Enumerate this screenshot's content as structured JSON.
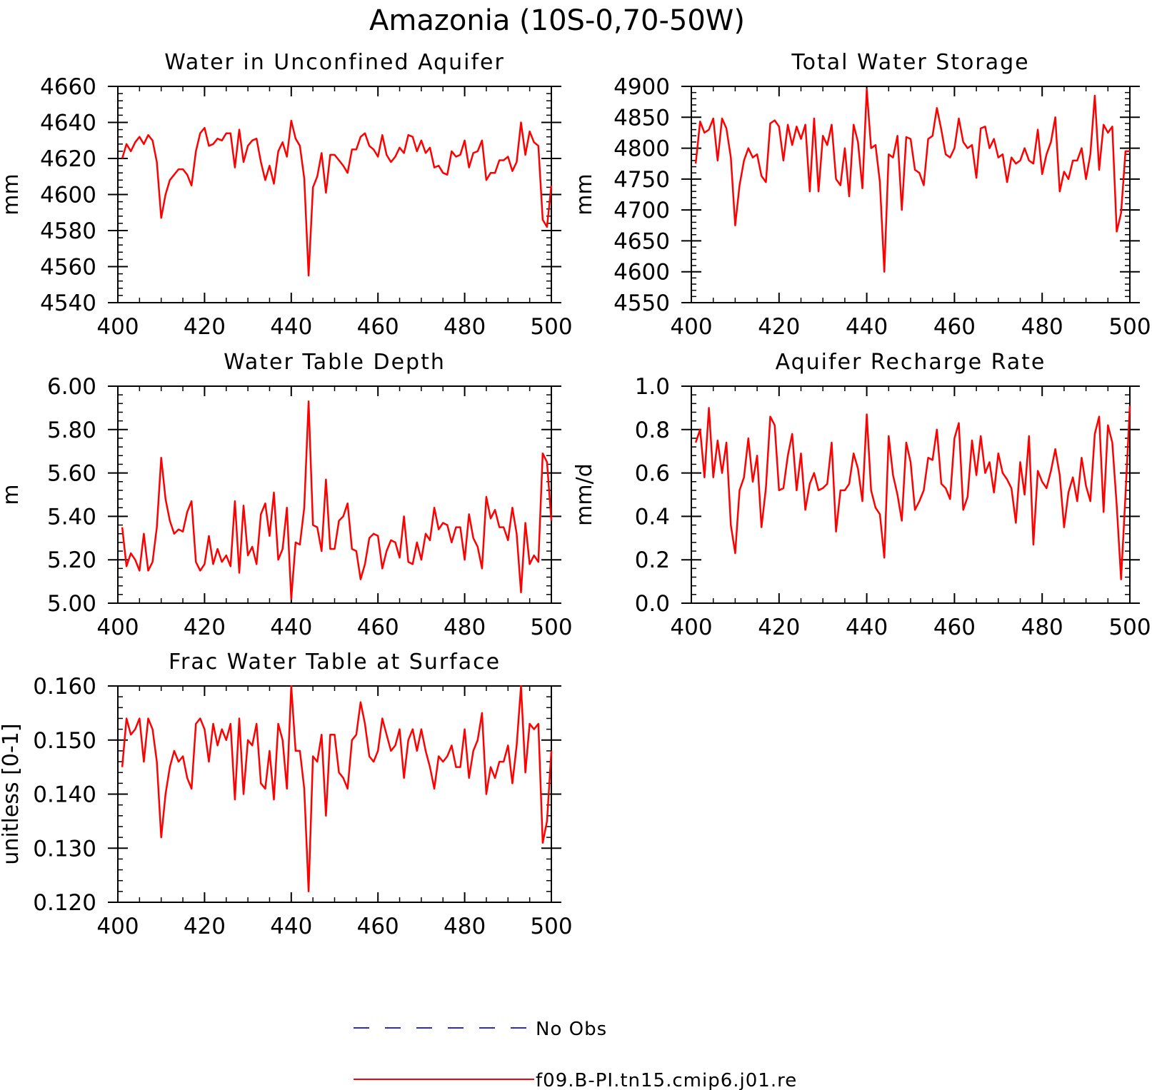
{
  "figure": {
    "title": "Amazonia (10S-0,70-50W)"
  },
  "legend": [
    {
      "label": "No Obs",
      "color": "#2a2ad0",
      "style": "dashed"
    },
    {
      "label": "f09.B-PI.tn15.cmip6.j01.re",
      "color": "#ff0000",
      "style": "solid"
    }
  ],
  "chart_data": [
    {
      "type": "line",
      "title": "Water in Unconfined Aquifer",
      "ylabel": "mm",
      "xlim": [
        400,
        500
      ],
      "ylim": [
        4540,
        4660
      ],
      "xticks": [
        400,
        420,
        440,
        460,
        480,
        500
      ],
      "xtick_labels": [
        "400",
        "420",
        "440",
        "460",
        "480",
        "500"
      ],
      "yticks": [
        4540,
        4560,
        4580,
        4600,
        4620,
        4640,
        4660
      ],
      "ytick_labels": [
        "4540",
        "4560",
        "4580",
        "4600",
        "4620",
        "4640",
        "4660"
      ],
      "series": [
        {
          "color": "#ff0000",
          "x_start": 401,
          "x_step": 1,
          "values": [
            4620,
            4628,
            4624,
            4629,
            4632,
            4628,
            4633,
            4630,
            4618,
            4587,
            4600,
            4608,
            4611,
            4614,
            4614,
            4611,
            4605,
            4624,
            4634,
            4637,
            4627,
            4628,
            4631,
            4630,
            4634,
            4634,
            4615,
            4636,
            4618,
            4627,
            4630,
            4631,
            4618,
            4608,
            4616,
            4606,
            4624,
            4629,
            4621,
            4641,
            4631,
            4627,
            4609,
            4555,
            4604,
            4610,
            4623,
            4601,
            4622,
            4622,
            4619,
            4616,
            4612,
            4625,
            4625,
            4632,
            4634,
            4627,
            4625,
            4621,
            4633,
            4622,
            4618,
            4621,
            4626,
            4623,
            4633,
            4632,
            4624,
            4630,
            4623,
            4626,
            4615,
            4616,
            4612,
            4611,
            4624,
            4621,
            4622,
            4630,
            4615,
            4623,
            4624,
            4630,
            4608,
            4612,
            4612,
            4619,
            4619,
            4621,
            4613,
            4618,
            4640,
            4622,
            4635,
            4629,
            4627,
            4586,
            4582,
            4605
          ]
        }
      ]
    },
    {
      "type": "line",
      "title": "Total Water Storage",
      "ylabel": "mm",
      "xlim": [
        400,
        500
      ],
      "ylim": [
        4550,
        4900
      ],
      "xticks": [
        400,
        420,
        440,
        460,
        480,
        500
      ],
      "xtick_labels": [
        "400",
        "420",
        "440",
        "460",
        "480",
        "500"
      ],
      "yticks": [
        4550,
        4600,
        4650,
        4700,
        4750,
        4800,
        4850,
        4900
      ],
      "ytick_labels": [
        "4550",
        "4600",
        "4650",
        "4700",
        "4750",
        "4800",
        "4850",
        "4900"
      ],
      "series": [
        {
          "color": "#ff0000",
          "x_start": 401,
          "x_step": 1,
          "values": [
            4775,
            4843,
            4825,
            4830,
            4848,
            4780,
            4848,
            4832,
            4785,
            4675,
            4740,
            4780,
            4800,
            4785,
            4790,
            4755,
            4745,
            4840,
            4845,
            4835,
            4780,
            4838,
            4805,
            4835,
            4815,
            4838,
            4730,
            4848,
            4730,
            4820,
            4805,
            4838,
            4750,
            4740,
            4800,
            4722,
            4838,
            4810,
            4735,
            4895,
            4800,
            4805,
            4745,
            4600,
            4790,
            4785,
            4820,
            4700,
            4818,
            4815,
            4765,
            4760,
            4740,
            4815,
            4820,
            4865,
            4830,
            4790,
            4785,
            4800,
            4848,
            4810,
            4800,
            4805,
            4752,
            4832,
            4835,
            4800,
            4815,
            4785,
            4790,
            4745,
            4785,
            4775,
            4780,
            4800,
            4780,
            4775,
            4830,
            4758,
            4790,
            4810,
            4850,
            4730,
            4762,
            4750,
            4780,
            4780,
            4800,
            4750,
            4790,
            4885,
            4765,
            4838,
            4825,
            4835,
            4665,
            4695,
            4795,
            4795
          ]
        }
      ]
    },
    {
      "type": "line",
      "title": "Water Table Depth",
      "ylabel": "m",
      "xlim": [
        400,
        500
      ],
      "ylim": [
        5.0,
        6.0
      ],
      "xticks": [
        400,
        420,
        440,
        460,
        480,
        500
      ],
      "xtick_labels": [
        "400",
        "420",
        "440",
        "460",
        "480",
        "500"
      ],
      "yticks": [
        5.0,
        5.2,
        5.4,
        5.6,
        5.8,
        6.0
      ],
      "ytick_labels": [
        "5.00",
        "5.20",
        "5.40",
        "5.60",
        "5.80",
        "6.00"
      ],
      "series": [
        {
          "color": "#ff0000",
          "x_start": 401,
          "x_step": 1,
          "values": [
            5.35,
            5.17,
            5.23,
            5.2,
            5.15,
            5.32,
            5.15,
            5.19,
            5.35,
            5.67,
            5.48,
            5.38,
            5.32,
            5.34,
            5.33,
            5.42,
            5.47,
            5.19,
            5.15,
            5.18,
            5.31,
            5.18,
            5.25,
            5.19,
            5.22,
            5.17,
            5.47,
            5.14,
            5.45,
            5.22,
            5.26,
            5.18,
            5.41,
            5.46,
            5.31,
            5.51,
            5.2,
            5.25,
            5.44,
            5.02,
            5.28,
            5.27,
            5.44,
            5.93,
            5.36,
            5.35,
            5.24,
            5.57,
            5.25,
            5.25,
            5.38,
            5.4,
            5.46,
            5.25,
            5.24,
            5.11,
            5.18,
            5.3,
            5.32,
            5.31,
            5.16,
            5.24,
            5.29,
            5.28,
            5.21,
            5.4,
            5.19,
            5.18,
            5.28,
            5.2,
            5.32,
            5.29,
            5.44,
            5.34,
            5.37,
            5.36,
            5.28,
            5.35,
            5.35,
            5.2,
            5.41,
            5.3,
            5.26,
            5.16,
            5.49,
            5.39,
            5.43,
            5.35,
            5.35,
            5.29,
            5.44,
            5.32,
            5.05,
            5.37,
            5.18,
            5.22,
            5.19,
            5.69,
            5.65,
            5.38
          ]
        }
      ]
    },
    {
      "type": "line",
      "title": "Aquifer Recharge Rate",
      "ylabel": "mm/d",
      "xlim": [
        400,
        500
      ],
      "ylim": [
        0.0,
        1.0
      ],
      "xticks": [
        400,
        420,
        440,
        460,
        480,
        500
      ],
      "xtick_labels": [
        "400",
        "420",
        "440",
        "460",
        "480",
        "500"
      ],
      "yticks": [
        0.0,
        0.2,
        0.4,
        0.6,
        0.8,
        1.0
      ],
      "ytick_labels": [
        "0.0",
        "0.2",
        "0.4",
        "0.6",
        "0.8",
        "1.0"
      ],
      "series": [
        {
          "color": "#ff0000",
          "x_start": 401,
          "x_step": 1,
          "values": [
            0.74,
            0.8,
            0.58,
            0.9,
            0.58,
            0.75,
            0.6,
            0.74,
            0.36,
            0.23,
            0.52,
            0.58,
            0.76,
            0.56,
            0.68,
            0.35,
            0.53,
            0.86,
            0.82,
            0.52,
            0.53,
            0.68,
            0.78,
            0.52,
            0.69,
            0.43,
            0.55,
            0.6,
            0.52,
            0.53,
            0.55,
            0.74,
            0.33,
            0.52,
            0.52,
            0.55,
            0.69,
            0.62,
            0.47,
            0.87,
            0.52,
            0.44,
            0.41,
            0.21,
            0.77,
            0.59,
            0.5,
            0.38,
            0.74,
            0.65,
            0.43,
            0.47,
            0.52,
            0.67,
            0.66,
            0.8,
            0.55,
            0.53,
            0.48,
            0.76,
            0.83,
            0.43,
            0.49,
            0.75,
            0.59,
            0.77,
            0.6,
            0.65,
            0.51,
            0.69,
            0.6,
            0.57,
            0.53,
            0.37,
            0.65,
            0.5,
            0.77,
            0.27,
            0.61,
            0.56,
            0.53,
            0.61,
            0.71,
            0.59,
            0.35,
            0.51,
            0.58,
            0.47,
            0.67,
            0.54,
            0.47,
            0.78,
            0.86,
            0.42,
            0.82,
            0.74,
            0.45,
            0.11,
            0.5,
            0.91
          ]
        }
      ]
    },
    {
      "type": "line",
      "title": "Frac Water Table at Surface",
      "ylabel": "unitless [0-1]",
      "xlim": [
        400,
        500
      ],
      "ylim": [
        0.12,
        0.16
      ],
      "xticks": [
        400,
        420,
        440,
        460,
        480,
        500
      ],
      "xtick_labels": [
        "400",
        "420",
        "440",
        "460",
        "480",
        "500"
      ],
      "yticks": [
        0.12,
        0.13,
        0.14,
        0.15,
        0.16
      ],
      "ytick_labels": [
        "0.120",
        "0.130",
        "0.140",
        "0.150",
        "0.160"
      ],
      "series": [
        {
          "color": "#ff0000",
          "x_start": 401,
          "x_step": 1,
          "values": [
            0.145,
            0.154,
            0.151,
            0.152,
            0.154,
            0.146,
            0.154,
            0.152,
            0.146,
            0.132,
            0.14,
            0.145,
            0.148,
            0.146,
            0.147,
            0.143,
            0.141,
            0.153,
            0.154,
            0.152,
            0.146,
            0.153,
            0.149,
            0.152,
            0.15,
            0.153,
            0.139,
            0.154,
            0.14,
            0.15,
            0.149,
            0.153,
            0.142,
            0.141,
            0.148,
            0.139,
            0.153,
            0.15,
            0.141,
            0.16,
            0.148,
            0.148,
            0.141,
            0.122,
            0.147,
            0.146,
            0.151,
            0.136,
            0.151,
            0.151,
            0.144,
            0.143,
            0.141,
            0.15,
            0.151,
            0.157,
            0.153,
            0.147,
            0.146,
            0.148,
            0.154,
            0.151,
            0.148,
            0.149,
            0.152,
            0.143,
            0.15,
            0.152,
            0.148,
            0.152,
            0.148,
            0.145,
            0.141,
            0.147,
            0.146,
            0.147,
            0.149,
            0.145,
            0.145,
            0.152,
            0.143,
            0.148,
            0.15,
            0.155,
            0.14,
            0.145,
            0.143,
            0.146,
            0.146,
            0.149,
            0.142,
            0.149,
            0.16,
            0.144,
            0.153,
            0.152,
            0.153,
            0.131,
            0.135,
            0.148
          ]
        }
      ]
    }
  ]
}
